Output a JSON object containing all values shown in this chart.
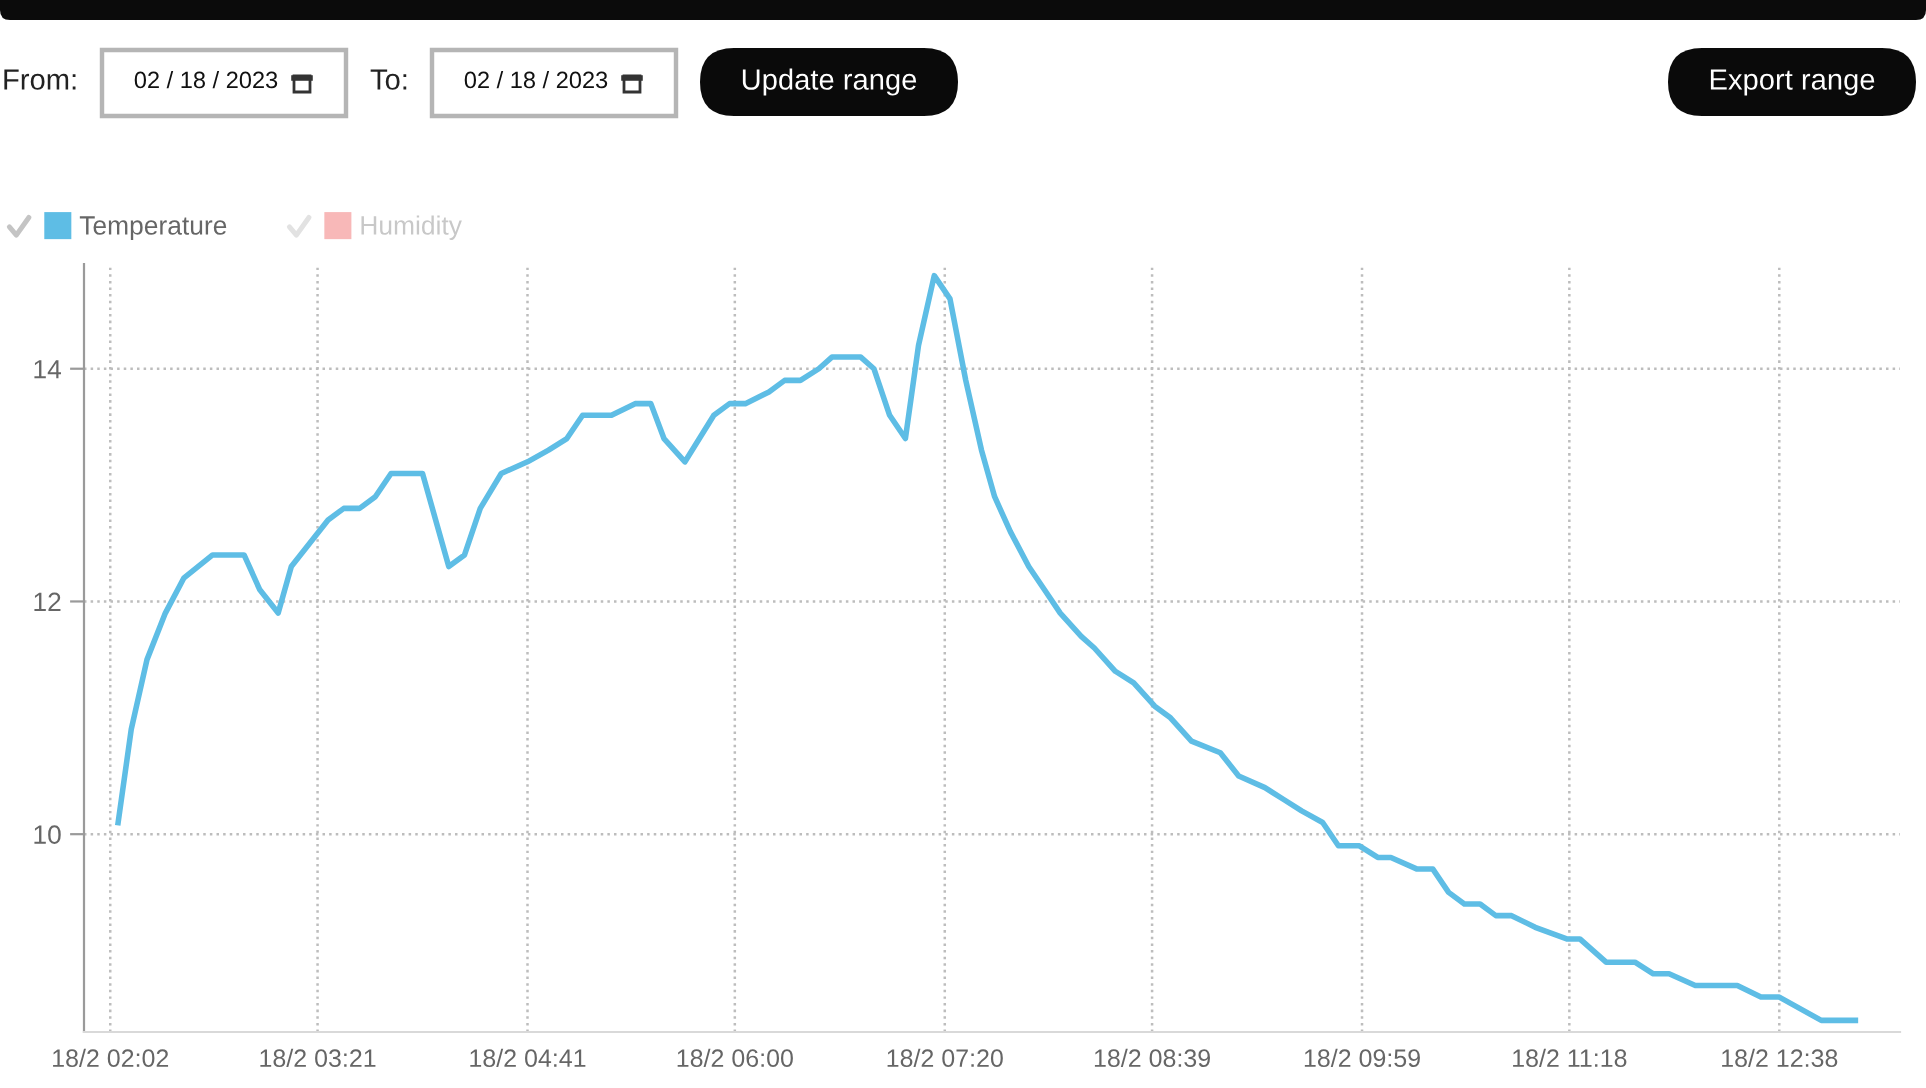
{
  "chart_data": {
    "type": "line",
    "annotations": [
      "From:",
      "02 / 18 / 2023",
      "To:",
      "02 / 18 / 2023",
      "Update range",
      "Export range"
    ],
    "x": [
      "2023-02-18T02:05",
      "2023-02-18T02:10",
      "2023-02-18T02:16",
      "2023-02-18T02:23",
      "2023-02-18T02:30",
      "2023-02-18T02:41",
      "2023-02-18T02:53",
      "2023-02-18T02:59",
      "2023-02-18T03:06",
      "2023-02-18T03:11",
      "2023-02-18T03:18",
      "2023-02-18T03:25",
      "2023-02-18T03:31",
      "2023-02-18T03:37",
      "2023-02-18T03:43",
      "2023-02-18T03:49",
      "2023-02-18T04:01",
      "2023-02-18T04:11",
      "2023-02-18T04:17",
      "2023-02-18T04:23",
      "2023-02-18T04:31",
      "2023-02-18T04:41",
      "2023-02-18T04:49",
      "2023-02-18T04:56",
      "2023-02-18T05:02",
      "2023-02-18T05:13",
      "2023-02-18T05:22",
      "2023-02-18T05:28",
      "2023-02-18T05:33",
      "2023-02-18T05:41",
      "2023-02-18T05:52",
      "2023-02-18T05:58",
      "2023-02-18T06:04",
      "2023-02-18T06:13",
      "2023-02-18T06:19",
      "2023-02-18T06:25",
      "2023-02-18T06:32",
      "2023-02-18T06:37",
      "2023-02-18T06:48",
      "2023-02-18T06:53",
      "2023-02-18T06:59",
      "2023-02-18T07:05",
      "2023-02-18T07:10",
      "2023-02-18T07:16",
      "2023-02-18T07:22",
      "2023-02-18T07:28",
      "2023-02-18T07:34",
      "2023-02-18T07:39",
      "2023-02-18T07:45",
      "2023-02-18T07:52",
      "2023-02-18T07:58",
      "2023-02-18T08:04",
      "2023-02-18T08:12",
      "2023-02-18T08:17",
      "2023-02-18T08:25",
      "2023-02-18T08:32",
      "2023-02-18T08:40",
      "2023-02-18T08:46",
      "2023-02-18T08:54",
      "2023-02-18T09:05",
      "2023-02-18T09:12",
      "2023-02-18T09:22",
      "2023-02-18T09:29",
      "2023-02-18T09:36",
      "2023-02-18T09:44",
      "2023-02-18T09:50",
      "2023-02-18T09:58",
      "2023-02-18T10:05",
      "2023-02-18T10:10",
      "2023-02-18T10:20",
      "2023-02-18T10:26",
      "2023-02-18T10:32",
      "2023-02-18T10:38",
      "2023-02-18T10:44",
      "2023-02-18T10:50",
      "2023-02-18T10:56",
      "2023-02-18T11:05",
      "2023-02-18T11:17",
      "2023-02-18T11:22",
      "2023-02-18T11:32",
      "2023-02-18T11:43",
      "2023-02-18T11:50",
      "2023-02-18T11:56",
      "2023-02-18T12:06",
      "2023-02-18T12:22",
      "2023-02-18T12:31",
      "2023-02-18T12:38",
      "2023-02-18T12:54",
      "2023-02-18T13:07"
    ],
    "series": [
      {
        "name": "Temperature",
        "color": "#5ebde5",
        "values": [
          10.1,
          10.9,
          11.5,
          11.9,
          12.2,
          12.4,
          12.4,
          12.1,
          11.9,
          12.3,
          12.5,
          12.7,
          12.8,
          12.8,
          12.9,
          13.1,
          13.1,
          12.3,
          12.4,
          12.8,
          13.1,
          13.2,
          13.3,
          13.4,
          13.6,
          13.6,
          13.7,
          13.7,
          13.4,
          13.2,
          13.6,
          13.7,
          13.7,
          13.8,
          13.9,
          13.9,
          14.0,
          14.1,
          14.1,
          14.0,
          13.6,
          13.4,
          14.2,
          14.8,
          14.6,
          13.9,
          13.3,
          12.9,
          12.6,
          12.3,
          12.1,
          11.9,
          11.7,
          11.6,
          11.4,
          11.3,
          11.1,
          11.0,
          10.8,
          10.7,
          10.5,
          10.4,
          10.3,
          10.2,
          10.1,
          9.9,
          9.9,
          9.8,
          9.8,
          9.7,
          9.7,
          9.5,
          9.4,
          9.4,
          9.3,
          9.3,
          9.2,
          9.1,
          9.1,
          8.9,
          8.9,
          8.8,
          8.8,
          8.7,
          8.7,
          8.6,
          8.6,
          8.4,
          8.4
        ]
      },
      {
        "name": "Humidity",
        "color": "#f8b8b8",
        "values": [
          null,
          null,
          null,
          null,
          null,
          null,
          null,
          null,
          null,
          null,
          null,
          null,
          null,
          null,
          null,
          null,
          null,
          null,
          null,
          null,
          null,
          null,
          null,
          null,
          null,
          null,
          null,
          null,
          null,
          null,
          null,
          null,
          null,
          null,
          null,
          null,
          null,
          null,
          null,
          null,
          null,
          null,
          null,
          null,
          null,
          null,
          null,
          null,
          null,
          null,
          null,
          null,
          null,
          null,
          null,
          null,
          null,
          null,
          null,
          null,
          null,
          null,
          null,
          null,
          null,
          null,
          null,
          null,
          null,
          null,
          null,
          null,
          null,
          null,
          null,
          null,
          null,
          null,
          null,
          null,
          null,
          null,
          null,
          null,
          null,
          null,
          null,
          null,
          null
        ]
      }
    ],
    "xlim": [
      "2023-02-18T01:52",
      "2023-02-18T13:24"
    ],
    "xticks": [
      {
        "value": "2023-02-18T02:02",
        "label": "18/2 02:02"
      },
      {
        "value": "2023-02-18T03:21",
        "label": "18/2 03:21"
      },
      {
        "value": "2023-02-18T04:41",
        "label": "18/2 04:41"
      },
      {
        "value": "2023-02-18T06:00",
        "label": "18/2 06:00"
      },
      {
        "value": "2023-02-18T07:20",
        "label": "18/2 07:20"
      },
      {
        "value": "2023-02-18T08:39",
        "label": "18/2 08:39"
      },
      {
        "value": "2023-02-18T09:59",
        "label": "18/2 09:59"
      },
      {
        "value": "2023-02-18T11:18",
        "label": "18/2 11:18"
      },
      {
        "value": "2023-02-18T12:38",
        "label": "18/2 12:38"
      }
    ],
    "ylim": [
      8.3,
      14.9
    ],
    "yticks": [
      10,
      12,
      14
    ],
    "grid": true,
    "legend": "top left",
    "line_style": "solid"
  }
}
